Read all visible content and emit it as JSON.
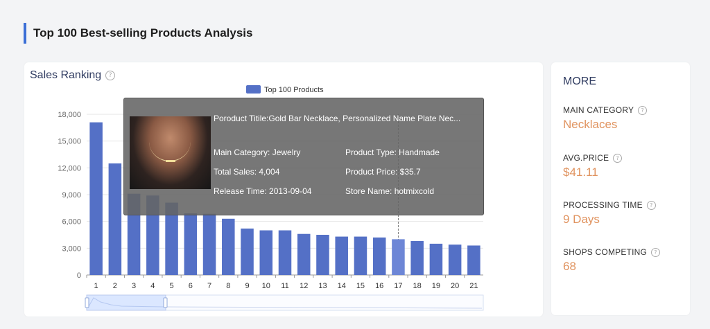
{
  "page": {
    "title": "Top 100 Best-selling Products Analysis"
  },
  "chart_card": {
    "title": "Sales Ranking"
  },
  "chart_data": {
    "type": "bar",
    "legend": {
      "label": "Top 100 Products",
      "position": "top-center"
    },
    "categories": [
      "1",
      "2",
      "3",
      "4",
      "5",
      "6",
      "7",
      "8",
      "9",
      "10",
      "11",
      "12",
      "13",
      "14",
      "15",
      "16",
      "17",
      "18",
      "19",
      "20",
      "21"
    ],
    "values": [
      17100,
      12500,
      9100,
      8900,
      8100,
      6900,
      6850,
      6300,
      5200,
      5000,
      5000,
      4600,
      4500,
      4300,
      4300,
      4200,
      4004,
      3800,
      3500,
      3400,
      3300
    ],
    "ylim": [
      0,
      18000
    ],
    "yticks": [
      "0",
      "3,000",
      "6,000",
      "9,000",
      "12,000",
      "15,000",
      "18,000"
    ],
    "highlight_index": 16,
    "grid": true,
    "bar_color": "#5470c6"
  },
  "tooltip": {
    "title": "Poroduct Titile:Gold Bar Necklace, Personalized Name Plate Nec...",
    "main_category": "Main Category: Jewelry",
    "product_type": "Product Type: Handmade",
    "total_sales": "Total Sales: 4,004",
    "product_price": "Product Price: $35.7",
    "release_time": "Release Time: 2013-09-04",
    "store_name": "Store Name: hotmixcold"
  },
  "more": {
    "title": "MORE",
    "stats": [
      {
        "label": "MAIN CATEGORY",
        "value": "Necklaces"
      },
      {
        "label": "AVG.PRICE",
        "value": "$41.11"
      },
      {
        "label": "PROCESSING TIME",
        "value": "9 Days"
      },
      {
        "label": "SHOPS COMPETING",
        "value": "68"
      }
    ]
  },
  "colors": {
    "accent": "#3b6fd6",
    "value": "#e0935f",
    "bar": "#5470c6"
  }
}
